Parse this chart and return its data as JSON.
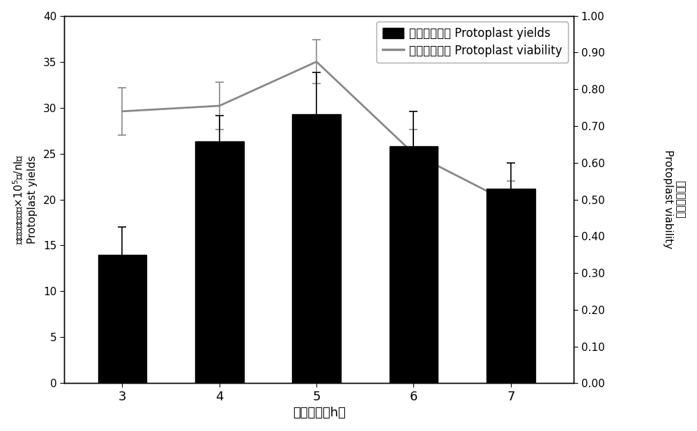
{
  "x": [
    3,
    4,
    5,
    6,
    7
  ],
  "bar_values": [
    14.0,
    26.3,
    29.3,
    25.8,
    21.2
  ],
  "bar_errors": [
    3.0,
    2.8,
    4.5,
    3.8,
    2.8
  ],
  "line_values": [
    0.74,
    0.755,
    0.875,
    0.625,
    0.49
  ],
  "line_errors": [
    0.065,
    0.065,
    0.06,
    0.065,
    0.06
  ],
  "bar_color": "#000000",
  "line_color": "#888888",
  "bar_label": "原生质体产量 Protoplast yields",
  "line_label": "原生质体活性 Protoplast viability",
  "xlabel": "酶解时间（h）",
  "ylabel_left_cn": "原生质体产量（×10^5个/nl）",
  "ylabel_left_en": "Protoplast yields",
  "ylabel_right_cn": "原生质体活性",
  "ylabel_right_en": "Protoplast viability",
  "ylim_left": [
    0,
    40
  ],
  "ylim_right": [
    0.0,
    1.0
  ],
  "yticks_left": [
    0,
    5,
    10,
    15,
    20,
    25,
    30,
    35,
    40
  ],
  "yticks_right": [
    0.0,
    0.1,
    0.2,
    0.3,
    0.4,
    0.5,
    0.6,
    0.7,
    0.8,
    0.9,
    1.0
  ],
  "background_color": "#ffffff",
  "border_color": "#000000",
  "figsize": [
    10.0,
    6.19
  ],
  "dpi": 100
}
